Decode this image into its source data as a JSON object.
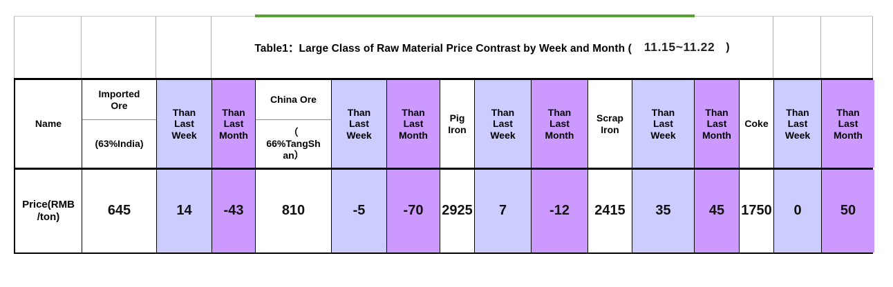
{
  "table": {
    "title": {
      "prefix": "Table1：Large Class of Raw Material Price Contrast by Week and Month (",
      "date_range": "11.15~11.22",
      "suffix": ")"
    },
    "colors": {
      "than_last_week_bg": "#ccccff",
      "than_last_month_bg": "#cc99ff",
      "green_accent_line": "#55a233",
      "border_black": "#000000",
      "border_gray": "#b3b3b3"
    },
    "header_cells": [
      {
        "label": "Name"
      },
      {
        "top": "Imported\nOre",
        "bottom": "(63%India)"
      },
      {
        "label": "Than\nLast\nWeek"
      },
      {
        "label": "Than\nLast\nMonth"
      },
      {
        "top": "China Ore",
        "bottom": "（\n66%TangSh\nan）"
      },
      {
        "label": "Than\nLast\nWeek"
      },
      {
        "label": "Than\nLast\nMonth"
      },
      {
        "label": "Pig\nIron"
      },
      {
        "label": "Than\nLast\nWeek"
      },
      {
        "label": "Than\nLast\nMonth"
      },
      {
        "label": "Scrap\nIron"
      },
      {
        "label": "Than\nLast\nWeek"
      },
      {
        "label": "Than\nLast\nMonth"
      },
      {
        "label": "Coke"
      },
      {
        "label": "Than\nLast\nWeek"
      },
      {
        "label": "Than\nLast\nMonth"
      }
    ],
    "data_row": {
      "label": "Price(RMB\n/ton)",
      "values": [
        "645",
        "14",
        "-43",
        "810",
        "-5",
        "-70",
        "2925",
        "7",
        "-12",
        "2415",
        "35",
        "45",
        "1750",
        "0",
        "50"
      ]
    }
  },
  "chart_data": {
    "type": "table",
    "title": "Table1：Large Class of Raw Material Price Contrast by Week and Month ( 11.15~11.22 )",
    "columns": [
      "Name",
      "Imported Ore (63%India)",
      "Than Last Week",
      "Than Last Month",
      "China Ore （66%TangShan）",
      "Than Last Week",
      "Than Last Month",
      "Pig Iron",
      "Than Last Week",
      "Than Last Month",
      "Scrap Iron",
      "Than Last Week",
      "Than Last Month",
      "Coke",
      "Than Last Week",
      "Than Last Month"
    ],
    "rows": [
      [
        "Price(RMB/ton)",
        645,
        14,
        -43,
        810,
        -5,
        -70,
        2925,
        7,
        -12,
        2415,
        35,
        45,
        1750,
        0,
        50
      ]
    ]
  }
}
